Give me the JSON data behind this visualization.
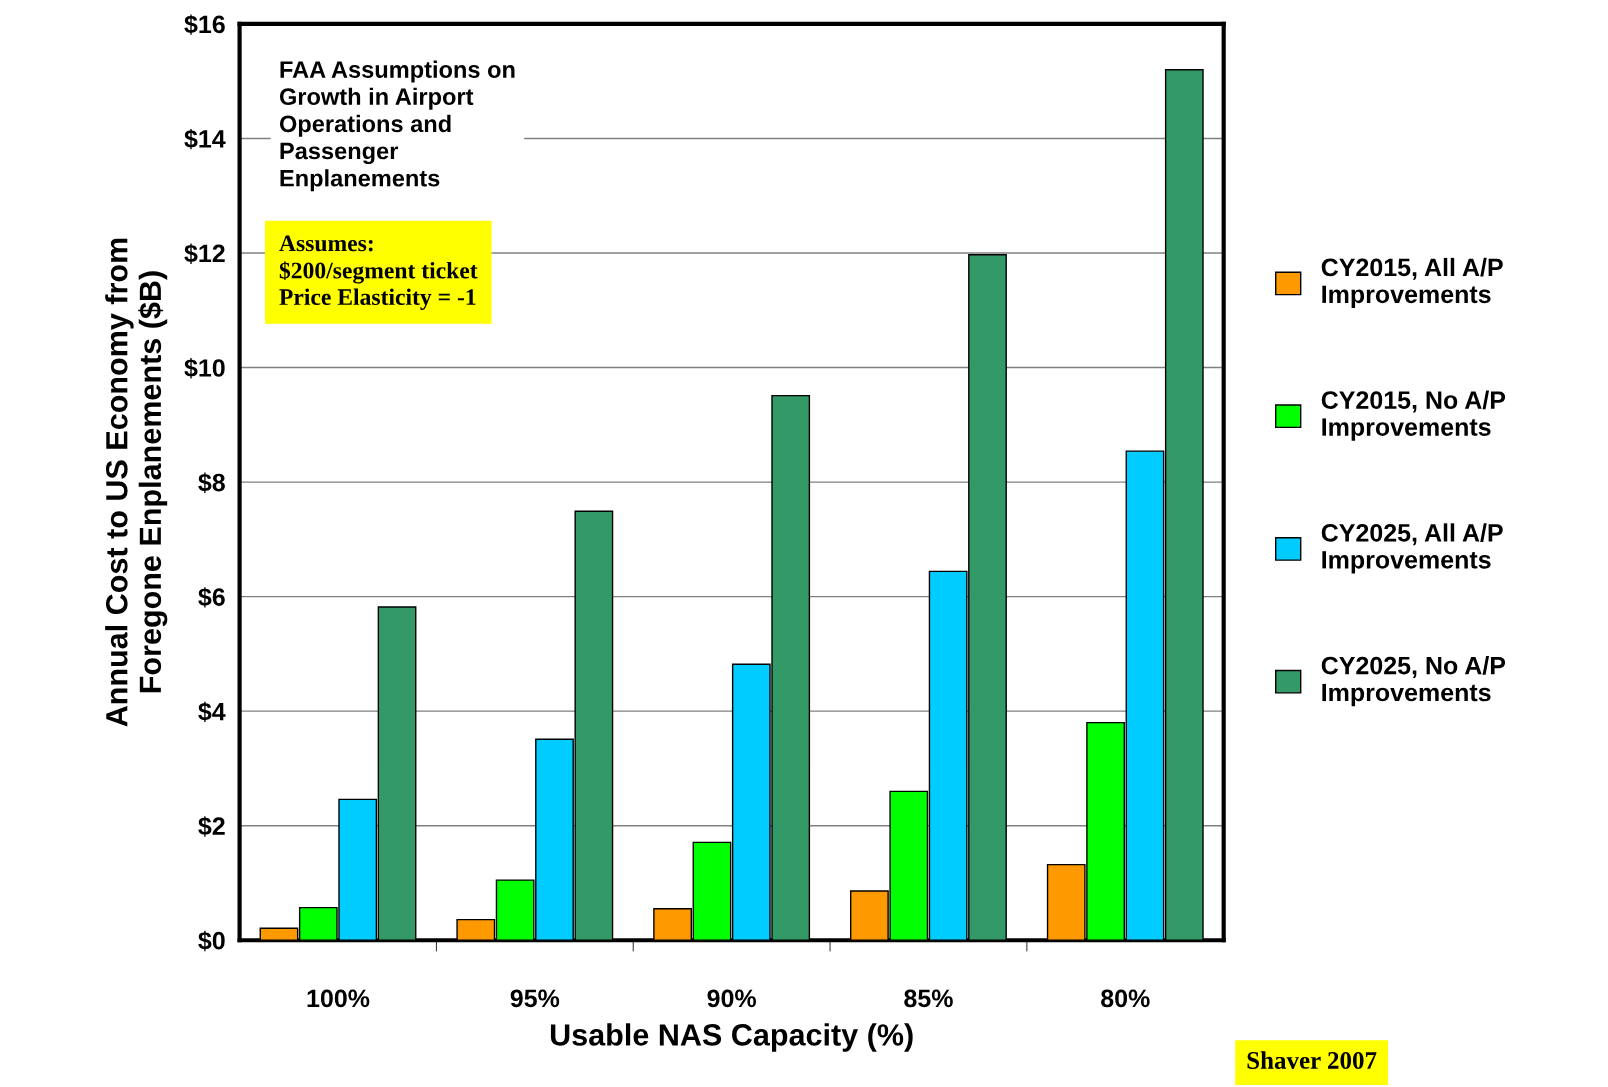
{
  "chart_data": {
    "type": "bar",
    "xlabel": "Usable NAS Capacity (%)",
    "ylabel": "Annual Cost to US Economy from\nForegone Enplanements ($B)",
    "categories": [
      "100%",
      "95%",
      "90%",
      "85%",
      "80%"
    ],
    "series": [
      {
        "name": "CY2015, All A/P\nImprovements",
        "color": "#ff9900",
        "values": [
          0.21,
          0.36,
          0.55,
          0.86,
          1.32
        ]
      },
      {
        "name": "CY2015, No A/P\nImprovements",
        "color": "#00ff00",
        "values": [
          0.57,
          1.05,
          1.71,
          2.6,
          3.8
        ]
      },
      {
        "name": "CY2025, All A/P\nImprovements",
        "color": "#00ccff",
        "values": [
          2.46,
          3.51,
          4.82,
          6.44,
          8.54
        ]
      },
      {
        "name": "CY2025, No A/P\nImprovements",
        "color": "#339966",
        "values": [
          5.82,
          7.49,
          9.51,
          11.97,
          15.2
        ]
      }
    ],
    "ylim": [
      0,
      16
    ],
    "yticks": [
      {
        "value": 0,
        "label": "$0"
      },
      {
        "value": 2,
        "label": "$2"
      },
      {
        "value": 4,
        "label": "$4"
      },
      {
        "value": 6,
        "label": "$6"
      },
      {
        "value": 8,
        "label": "$8"
      },
      {
        "value": 10,
        "label": "$10"
      },
      {
        "value": 12,
        "label": "$12"
      },
      {
        "value": 14,
        "label": "$14"
      },
      {
        "value": 16,
        "label": "$16"
      }
    ],
    "grid": "y",
    "legend": "right",
    "annotations": [
      "FAA Assumptions on\nGrowth in Airport\nOperations and\nPassenger\nEnplanements",
      "Assumes:\n$200/segment ticket\nPrice Elasticity = -1",
      "Shaver 2007"
    ]
  }
}
